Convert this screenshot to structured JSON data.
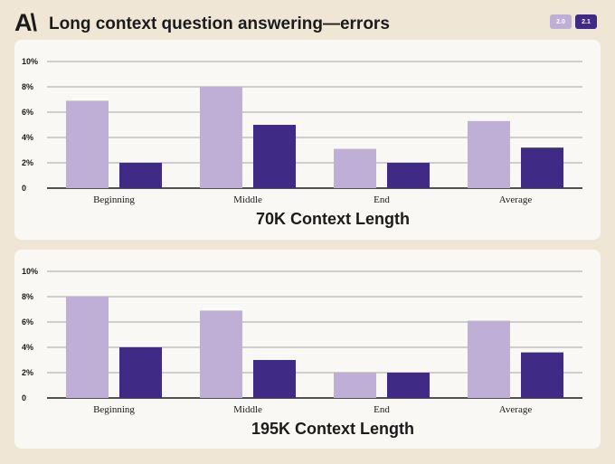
{
  "header": {
    "logo": "A\\",
    "title": "Long context question answering—errors"
  },
  "legend": [
    {
      "label": "2.0",
      "color": "#bfaed6"
    },
    {
      "label": "2.1",
      "color": "#3f2b85"
    }
  ],
  "chart_data": [
    {
      "type": "bar",
      "title": "70K Context Length",
      "categories": [
        "Beginning",
        "Middle",
        "End",
        "Average"
      ],
      "series": [
        {
          "name": "2.0",
          "values": [
            6.9,
            8.0,
            3.1,
            5.3
          ]
        },
        {
          "name": "2.1",
          "values": [
            2.0,
            5.0,
            2.0,
            3.2
          ]
        }
      ],
      "yticks": [
        "0",
        "2%",
        "4%",
        "6%",
        "8%",
        "10%"
      ],
      "ylim": [
        0,
        10
      ],
      "grid": true
    },
    {
      "type": "bar",
      "title": "195K Context Length",
      "categories": [
        "Beginning",
        "Middle",
        "End",
        "Average"
      ],
      "series": [
        {
          "name": "2.0",
          "values": [
            8.0,
            6.9,
            2.0,
            6.1
          ]
        },
        {
          "name": "2.1",
          "values": [
            4.0,
            3.0,
            2.0,
            3.6
          ]
        }
      ],
      "yticks": [
        "0",
        "2%",
        "4%",
        "6%",
        "8%",
        "10%"
      ],
      "ylim": [
        0,
        10
      ],
      "grid": true
    }
  ]
}
